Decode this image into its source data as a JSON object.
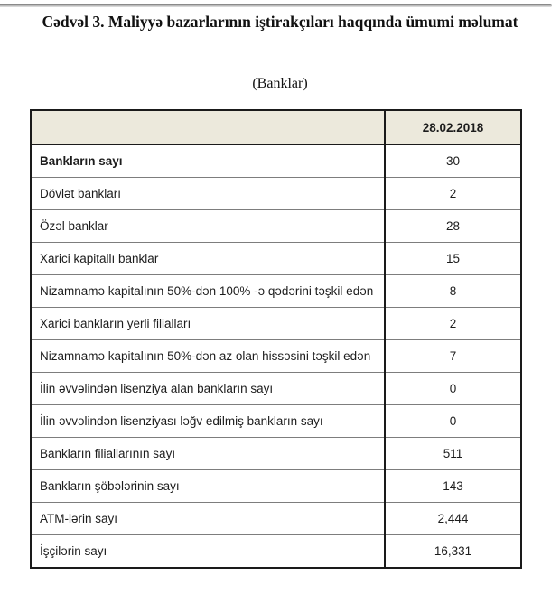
{
  "page": {
    "title": "Cədvəl 3. Maliyyə bazarlarının iştirakçıları haqqında ümumi məlumat",
    "subtitle": "(Banklar)"
  },
  "table": {
    "header": {
      "label_column": "",
      "date_column": "28.02.2018"
    },
    "rows": [
      {
        "label": "Bankların sayı",
        "value": "30",
        "bold": true
      },
      {
        "label": "Dövlət bankları",
        "value": "2",
        "bold": false
      },
      {
        "label": "Özəl banklar",
        "value": "28",
        "bold": false
      },
      {
        "label": "Xarici kapitallı banklar",
        "value": "15",
        "bold": false
      },
      {
        "label": "Nizamnamə kapitalının 50%-dən 100% -ə qədərini təşkil edən",
        "value": "8",
        "bold": false
      },
      {
        "label": "Xarici bankların yerli filialları",
        "value": "2",
        "bold": false
      },
      {
        "label": "Nizamnamə kapitalının 50%-dən az olan hissəsini  təşkil edən",
        "value": "7",
        "bold": false
      },
      {
        "label": "İlin əvvəlindən lisenziya alan bankların sayı",
        "value": "0",
        "bold": false
      },
      {
        "label": "İlin əvvəlindən lisenziyası ləğv edilmiş bankların sayı",
        "value": "0",
        "bold": false
      },
      {
        "label": "Bankların filiallarının sayı",
        "value": "511",
        "bold": false
      },
      {
        "label": "Bankların şöbələrinin sayı",
        "value": "143",
        "bold": false
      },
      {
        "label": "ATM-lərin sayı",
        "value": "2,444",
        "bold": false
      },
      {
        "label": "İşçilərin sayı",
        "value": "16,331",
        "bold": false
      }
    ]
  },
  "colors": {
    "header_bg": "#ECE9DC",
    "border_outer": "#1a1a1a",
    "border_inner": "#7d7d7d"
  }
}
